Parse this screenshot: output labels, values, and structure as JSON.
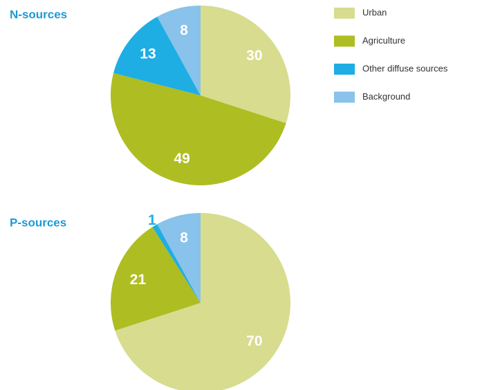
{
  "chart_data": [
    {
      "type": "pie",
      "title": "N-sources",
      "values": [
        30,
        49,
        13,
        8
      ]
    },
    {
      "type": "pie",
      "title": "P-sources",
      "values": [
        70,
        21,
        1,
        8
      ]
    }
  ],
  "legend": {
    "labels": [
      "Urban",
      "Agriculture",
      "Other diffuse sources",
      "Background"
    ],
    "colors": [
      "#d7dc8f",
      "#aebd22",
      "#1eaee3",
      "#89c2ea"
    ]
  }
}
